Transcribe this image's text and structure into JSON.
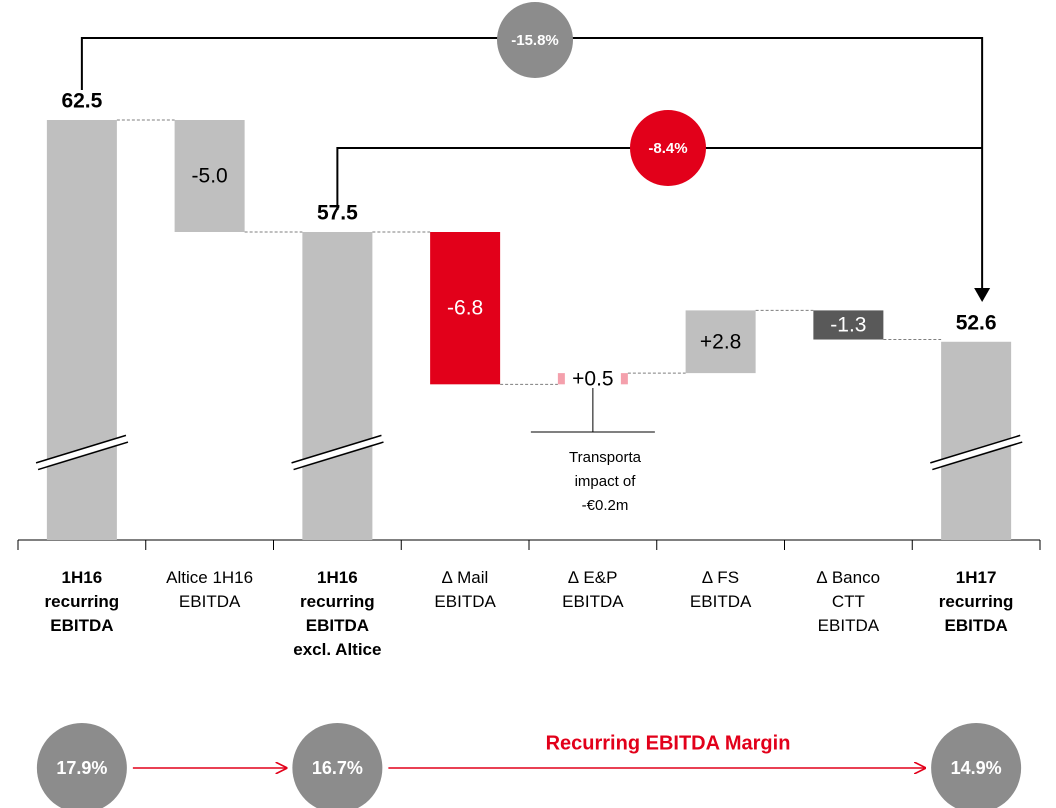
{
  "chart_data": {
    "type": "waterfall",
    "categories": [
      "1H16\nrecurring\nEBITDA",
      "Altice 1H16\nEBITDA",
      "1H16\nrecurring\nEBITDA\nexcl. Altice",
      "∆ Mail\nEBITDA",
      "∆ E&P\nEBITDA",
      "∆ FS\nEBITDA",
      "∆ Banco\nCTT\nEBITDA",
      "1H17\nrecurring\nEBITDA"
    ],
    "bar_kinds": [
      "total",
      "delta",
      "total",
      "delta",
      "delta",
      "delta",
      "delta",
      "total"
    ],
    "values": [
      62.5,
      -5.0,
      57.5,
      -6.8,
      0.5,
      2.8,
      -1.3,
      52.6
    ],
    "value_labels": [
      "62.5",
      "-5.0",
      "57.5",
      "-6.8",
      "+0.5",
      "+2.8",
      "-1.3",
      "52.6"
    ],
    "colors": [
      "#bfbfbf",
      "#bfbfbf",
      "#bfbfbf",
      "#e2001a",
      "#f4a0ac",
      "#bfbfbf",
      "#595959",
      "#bfbfbf"
    ],
    "ylim": [
      43.75,
      62.5
    ],
    "axis_break": true,
    "changes": {
      "values": [
        -15.8,
        -8.4
      ],
      "value_labels": [
        "-15.8%",
        "-8.4%"
      ],
      "colors": [
        "#8c8c8c",
        "#e2001a"
      ]
    },
    "note": "Transporta\nimpact of\n-€0.2m",
    "margin_title": "Recurring EBITDA Margin",
    "margins": {
      "category_index": [
        0,
        2,
        7
      ],
      "values": [
        17.9,
        16.7,
        14.9
      ],
      "value_labels": [
        "17.9%",
        "16.7%",
        "14.9%"
      ],
      "color": "#8c8c8c",
      "arrow_color": "#e2001a"
    }
  }
}
